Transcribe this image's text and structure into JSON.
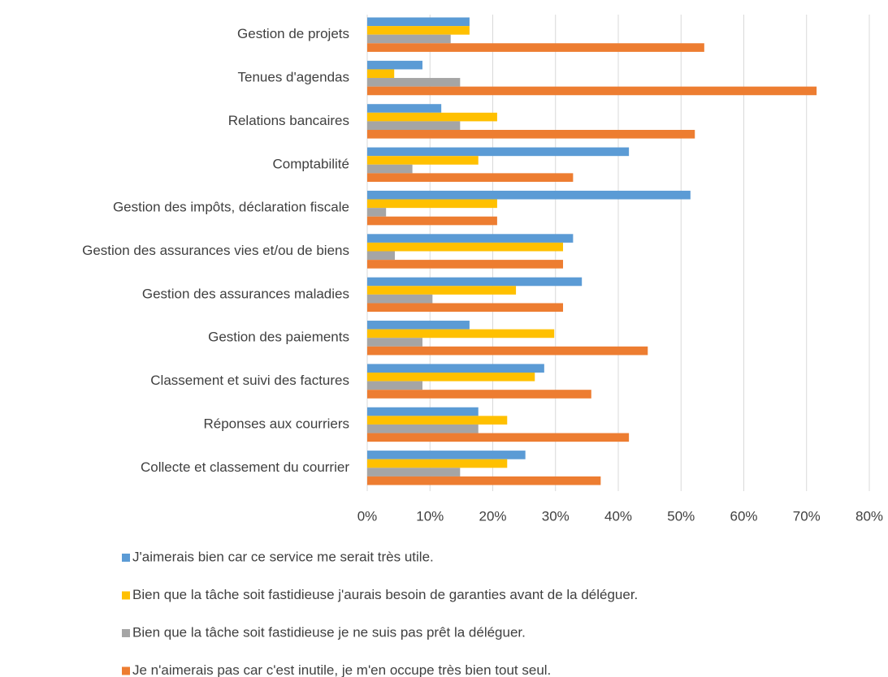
{
  "chart_data": {
    "type": "hbar",
    "categories": [
      "Gestion de projets",
      "Tenues d'agendas",
      "Relations bancaires",
      "Comptabilité",
      "Gestion des impôts, déclaration fiscale",
      "Gestion des assurances vies et/ou de biens",
      "Gestion des assurances maladies",
      "Gestion des paiements",
      "Classement et suivi des factures",
      "Réponses aux courriers",
      "Collecte et classement du courrier"
    ],
    "series": [
      {
        "name": "J'aimerais bien car ce service me serait très utile.",
        "color": "#5b9bd5",
        "values": [
          16.3,
          8.8,
          11.8,
          41.7,
          51.5,
          32.8,
          34.2,
          16.3,
          28.2,
          17.7,
          25.2
        ]
      },
      {
        "name": "Bien que la tâche soit fastidieuse j'aurais besoin de garanties avant de la déléguer.",
        "color": "#ffc000",
        "values": [
          16.3,
          4.3,
          20.7,
          17.7,
          20.7,
          31.2,
          23.7,
          29.8,
          26.7,
          22.3,
          22.3
        ]
      },
      {
        "name": "Bien que la tâche soit fastidieuse je ne suis pas prêt la déléguer.",
        "color": "#a5a5a5",
        "values": [
          13.3,
          14.8,
          14.8,
          7.2,
          3.0,
          4.4,
          10.4,
          8.8,
          8.8,
          17.7,
          14.8
        ]
      },
      {
        "name": "Je n'aimerais pas car c'est inutile, je m'en occupe très bien tout seul.",
        "color": "#ed7d31",
        "values": [
          53.7,
          71.6,
          52.2,
          32.8,
          20.7,
          31.2,
          31.2,
          44.7,
          35.7,
          41.7,
          37.2
        ]
      }
    ],
    "xlim": [
      0,
      80
    ],
    "xticks": [
      {
        "value": 0,
        "label": "0%"
      },
      {
        "value": 10,
        "label": "10%"
      },
      {
        "value": 20,
        "label": "20%"
      },
      {
        "value": 30,
        "label": "30%"
      },
      {
        "value": 40,
        "label": "40%"
      },
      {
        "value": 50,
        "label": "50%"
      },
      {
        "value": 60,
        "label": "60%"
      },
      {
        "value": 70,
        "label": "70%"
      },
      {
        "value": 80,
        "label": "80%"
      }
    ],
    "grid": true,
    "legend": "bottom"
  }
}
